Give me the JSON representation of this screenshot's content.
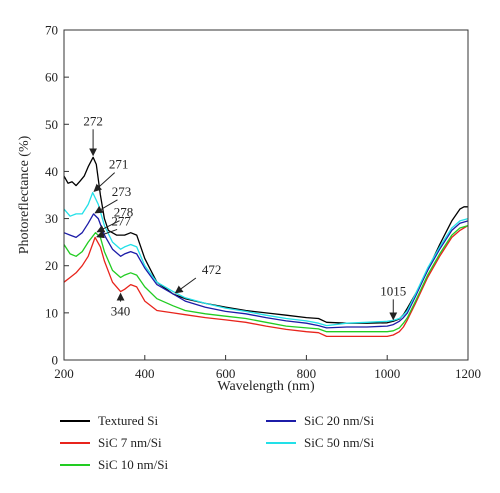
{
  "chart_data": {
    "type": "line",
    "xlabel": "Wavelength (nm)",
    "ylabel": "Photoreflectance (%)",
    "xlim": [
      200,
      1200
    ],
    "ylim": [
      0,
      70
    ],
    "xticks": [
      200,
      400,
      600,
      800,
      1000,
      1200
    ],
    "yticks": [
      0,
      10,
      20,
      30,
      40,
      50,
      60,
      70
    ],
    "grid": false,
    "legend_position": "bottom",
    "series": [
      {
        "name": "Textured Si",
        "color": "#000000",
        "x": [
          200,
          210,
          220,
          230,
          240,
          250,
          260,
          272,
          280,
          290,
          300,
          310,
          330,
          350,
          365,
          380,
          400,
          430,
          470,
          500,
          550,
          600,
          650,
          700,
          750,
          800,
          830,
          850,
          900,
          950,
          1000,
          1015,
          1030,
          1040,
          1050,
          1070,
          1100,
          1130,
          1160,
          1180,
          1190,
          1200
        ],
        "y": [
          39,
          37.5,
          37.8,
          37,
          38,
          39,
          41,
          43,
          41.5,
          35,
          30,
          27.5,
          26.5,
          26.5,
          27,
          26.5,
          21.5,
          16.5,
          14,
          13,
          12,
          11.2,
          10.5,
          10,
          9.5,
          9,
          8.8,
          8,
          7.8,
          7.8,
          7.9,
          8.2,
          8.7,
          9.6,
          11,
          14,
          19,
          24.5,
          29.5,
          32,
          32.5,
          32.5
        ]
      },
      {
        "name": "SiC 7 nm/Si",
        "color": "#e8241c",
        "x": [
          200,
          215,
          230,
          245,
          260,
          277,
          290,
          300,
          320,
          340,
          350,
          365,
          380,
          400,
          430,
          470,
          500,
          550,
          600,
          650,
          700,
          750,
          800,
          830,
          850,
          900,
          950,
          1000,
          1015,
          1030,
          1040,
          1050,
          1070,
          1100,
          1130,
          1160,
          1180,
          1200
        ],
        "y": [
          16.5,
          17.5,
          18.5,
          20,
          22,
          26,
          24,
          21,
          16.5,
          14.5,
          15,
          16,
          15.5,
          12.5,
          10.5,
          10,
          9.6,
          9,
          8.5,
          8,
          7.2,
          6.5,
          6,
          5.8,
          5,
          5,
          5,
          5,
          5.3,
          6,
          7,
          8.5,
          12,
          17.5,
          22,
          26,
          27.5,
          28.5
        ]
      },
      {
        "name": "SiC 10 nm/Si",
        "color": "#22cc22",
        "x": [
          200,
          215,
          230,
          245,
          260,
          278,
          290,
          300,
          320,
          340,
          350,
          365,
          380,
          400,
          430,
          470,
          500,
          550,
          600,
          650,
          700,
          750,
          800,
          830,
          850,
          900,
          950,
          1000,
          1015,
          1030,
          1040,
          1050,
          1070,
          1100,
          1130,
          1160,
          1180,
          1200
        ],
        "y": [
          24.5,
          22.5,
          22,
          23,
          25,
          27,
          26,
          23,
          19,
          17.5,
          18,
          18.5,
          18,
          15.5,
          13,
          11.5,
          10.5,
          9.8,
          9.3,
          8.8,
          8,
          7.2,
          6.8,
          6.6,
          6,
          6,
          6,
          6,
          6.2,
          6.8,
          7.8,
          9,
          12.5,
          18,
          22.5,
          26.5,
          28,
          28.5
        ]
      },
      {
        "name": "SiC 20 nm/Si",
        "color": "#1c1ca8",
        "x": [
          200,
          215,
          230,
          245,
          260,
          273,
          285,
          300,
          320,
          340,
          350,
          365,
          380,
          400,
          430,
          470,
          500,
          550,
          600,
          650,
          700,
          750,
          800,
          830,
          850,
          900,
          950,
          1000,
          1015,
          1030,
          1040,
          1050,
          1070,
          1100,
          1130,
          1160,
          1180,
          1200
        ],
        "y": [
          27,
          26.5,
          26,
          27,
          29,
          31,
          30,
          26.5,
          23.5,
          22,
          22.5,
          23,
          22.5,
          19.5,
          16,
          14,
          12.5,
          11.2,
          10.3,
          9.8,
          9,
          8.3,
          7.8,
          7.3,
          6.8,
          7,
          7,
          7.2,
          7.5,
          8.2,
          9,
          10,
          13.5,
          19,
          23.5,
          27.5,
          29,
          29.5
        ]
      },
      {
        "name": "SiC 50 nm/Si",
        "color": "#22e0e8",
        "x": [
          200,
          215,
          230,
          245,
          260,
          271,
          285,
          300,
          320,
          340,
          350,
          365,
          380,
          400,
          430,
          470,
          500,
          550,
          600,
          650,
          700,
          750,
          800,
          830,
          850,
          900,
          950,
          1000,
          1015,
          1030,
          1040,
          1050,
          1070,
          1100,
          1130,
          1160,
          1180,
          1200
        ],
        "y": [
          32,
          30.5,
          31,
          31,
          33,
          35.5,
          33,
          28.5,
          25,
          23.5,
          24,
          24.5,
          24,
          20,
          16.5,
          14.5,
          13.2,
          12,
          11,
          10.3,
          9.5,
          8.8,
          8.3,
          7.8,
          7.3,
          7.8,
          8,
          8.2,
          8.4,
          8.8,
          9.5,
          10.5,
          14,
          19.5,
          24,
          28,
          29.5,
          30
        ]
      }
    ],
    "annotations": [
      {
        "text": "272",
        "point": [
          272,
          43
        ]
      },
      {
        "text": "271",
        "point": [
          271,
          35.5
        ]
      },
      {
        "text": "273",
        "point": [
          273,
          31
        ]
      },
      {
        "text": "278",
        "point": [
          278,
          27
        ]
      },
      {
        "text": "277",
        "point": [
          277,
          26
        ]
      },
      {
        "text": "340",
        "point": [
          340,
          14.5
        ]
      },
      {
        "text": "472",
        "point": [
          472,
          14
        ]
      },
      {
        "text": "1015",
        "point": [
          1015,
          8.2
        ]
      }
    ]
  }
}
